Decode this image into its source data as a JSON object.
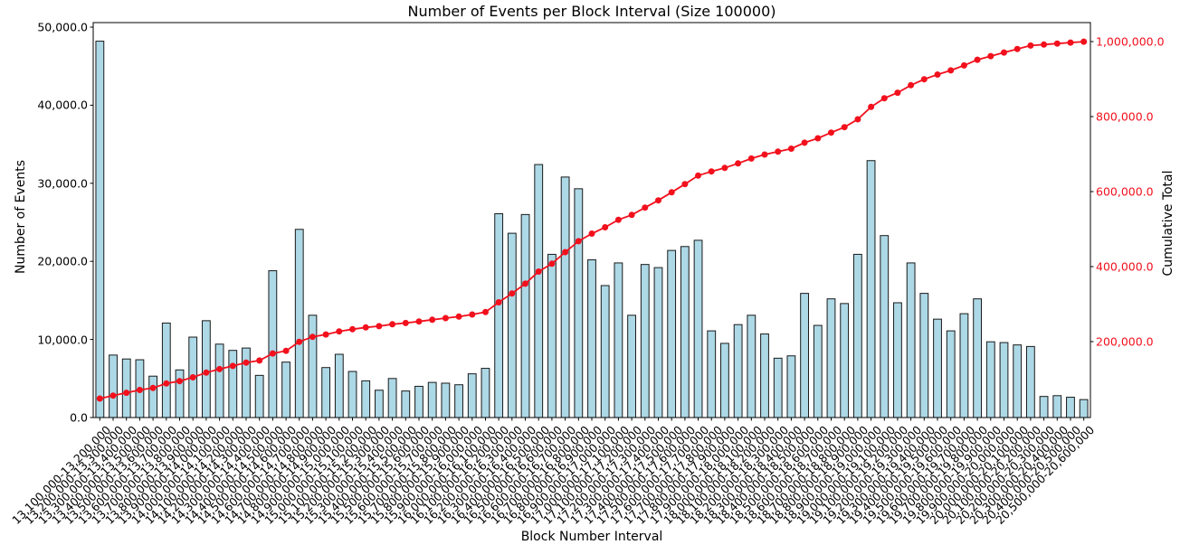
{
  "chart_data": {
    "type": "bar+line",
    "title": "Number of Events per Block Interval (Size 100000)",
    "xlabel": "Block Number Interval",
    "ylabel_left": "Number of Events",
    "ylabel_right": "Cumulative Total",
    "grid": false,
    "legend": null,
    "colors": {
      "bar_fill": "#ADD8E6",
      "bar_edge": "#1a1a1a",
      "line": "#f2101d",
      "axis_text": "#000000",
      "right_axis_text": "#f2101d",
      "spine": "#000000",
      "background": "#ffffff"
    },
    "y_left_axis": {
      "ticks": [
        0,
        10000,
        20000,
        30000,
        40000,
        50000
      ],
      "tick_labels": [
        "0.0",
        "10,000.0",
        "20,000.0",
        "30,000.0",
        "40,000.0",
        "50,000.0"
      ],
      "range": [
        0,
        50580
      ]
    },
    "y_right_axis": {
      "ticks": [
        200000,
        400000,
        600000,
        800000,
        1000000
      ],
      "tick_labels": [
        "200,000.0",
        "400,000.0",
        "600,000.0",
        "800,000.0",
        "1,000,000.0"
      ],
      "range": [
        0,
        1012000
      ]
    },
    "categories": [
      "13,100,000-13,200,000",
      "13,200,000-13,300,000",
      "13,300,000-13,400,000",
      "13,400,000-13,500,000",
      "13,500,000-13,600,000",
      "13,600,000-13,700,000",
      "13,700,000-13,800,000",
      "13,800,000-13,900,000",
      "13,900,000-14,000,000",
      "14,000,000-14,100,000",
      "14,100,000-14,200,000",
      "14,200,000-14,300,000",
      "14,300,000-14,400,000",
      "14,400,000-14,500,000",
      "14,500,000-14,600,000",
      "14,600,000-14,700,000",
      "14,700,000-14,800,000",
      "14,800,000-14,900,000",
      "14,900,000-15,000,000",
      "15,000,000-15,100,000",
      "15,100,000-15,200,000",
      "15,200,000-15,300,000",
      "15,300,000-15,400,000",
      "15,400,000-15,500,000",
      "15,500,000-15,600,000",
      "15,600,000-15,700,000",
      "15,700,000-15,800,000",
      "15,800,000-15,900,000",
      "15,900,000-16,000,000",
      "16,000,000-16,100,000",
      "16,100,000-16,200,000",
      "16,200,000-16,300,000",
      "16,300,000-16,400,000",
      "16,400,000-16,500,000",
      "16,500,000-16,600,000",
      "16,600,000-16,700,000",
      "16,700,000-16,800,000",
      "16,800,000-16,900,000",
      "16,900,000-17,000,000",
      "17,000,000-17,100,000",
      "17,100,000-17,200,000",
      "17,200,000-17,300,000",
      "17,300,000-17,400,000",
      "17,400,000-17,500,000",
      "17,500,000-17,600,000",
      "17,600,000-17,700,000",
      "17,700,000-17,800,000",
      "17,800,000-17,900,000",
      "17,900,000-18,000,000",
      "18,000,000-18,100,000",
      "18,100,000-18,200,000",
      "18,200,000-18,300,000",
      "18,300,000-18,400,000",
      "18,400,000-18,500,000",
      "18,500,000-18,600,000",
      "18,600,000-18,700,000",
      "18,700,000-18,800,000",
      "18,800,000-18,900,000",
      "18,900,000-19,000,000",
      "19,000,000-19,100,000",
      "19,100,000-19,200,000",
      "19,200,000-19,300,000",
      "19,300,000-19,400,000",
      "19,400,000-19,500,000",
      "19,500,000-19,600,000",
      "19,600,000-19,700,000",
      "19,700,000-19,800,000",
      "19,800,000-19,900,000",
      "19,900,000-20,000,000",
      "20,000,000-20,100,000",
      "20,100,000-20,200,000",
      "20,200,000-20,300,000",
      "20,300,000-20,400,000",
      "20,400,000-20,500,000",
      "20,500,000-20,600,000"
    ],
    "series": [
      {
        "name": "events_per_interval",
        "type": "bar",
        "yaxis": "left",
        "values": [
          48200,
          8000,
          7500,
          7400,
          5300,
          12100,
          6100,
          10300,
          12400,
          9400,
          8600,
          8900,
          5400,
          18800,
          7100,
          24100,
          13100,
          6400,
          8100,
          5900,
          4700,
          3500,
          5000,
          3400,
          4000,
          4500,
          4400,
          4200,
          5600,
          6300,
          26100,
          23600,
          26000,
          32400,
          20900,
          30800,
          29300,
          20200,
          16900,
          19800,
          13100,
          19600,
          19200,
          21400,
          21900,
          22700,
          11100,
          9500,
          11900,
          13100,
          10700,
          7600,
          7900,
          15900,
          11800,
          15200,
          14600,
          20900,
          32900,
          23300,
          14700,
          19800,
          15900,
          12600,
          11100,
          13300,
          15200,
          9700,
          9600,
          9300,
          9100,
          2700,
          2800,
          2600,
          2300
        ]
      },
      {
        "name": "cumulative_total",
        "type": "line",
        "yaxis": "right",
        "marker": "circle",
        "values": [
          48200,
          56200,
          63700,
          71100,
          76400,
          88500,
          94600,
          104900,
          117300,
          126700,
          135300,
          144200,
          149600,
          168400,
          175500,
          199600,
          212700,
          219100,
          227200,
          233100,
          237800,
          241300,
          246300,
          249700,
          253700,
          258200,
          262600,
          266800,
          272400,
          278700,
          304800,
          328400,
          354400,
          386800,
          407700,
          438500,
          467800,
          488000,
          504900,
          524700,
          537800,
          557400,
          576600,
          598000,
          619900,
          642600,
          653700,
          663200,
          675100,
          688200,
          698900,
          706500,
          714400,
          730300,
          742100,
          757300,
          771900,
          792800,
          825700,
          849000,
          863700,
          883500,
          899400,
          912000,
          923100,
          936400,
          951600,
          961300,
          970900,
          980200,
          989300,
          992000,
          994800,
          997400,
          999700
        ]
      }
    ]
  }
}
